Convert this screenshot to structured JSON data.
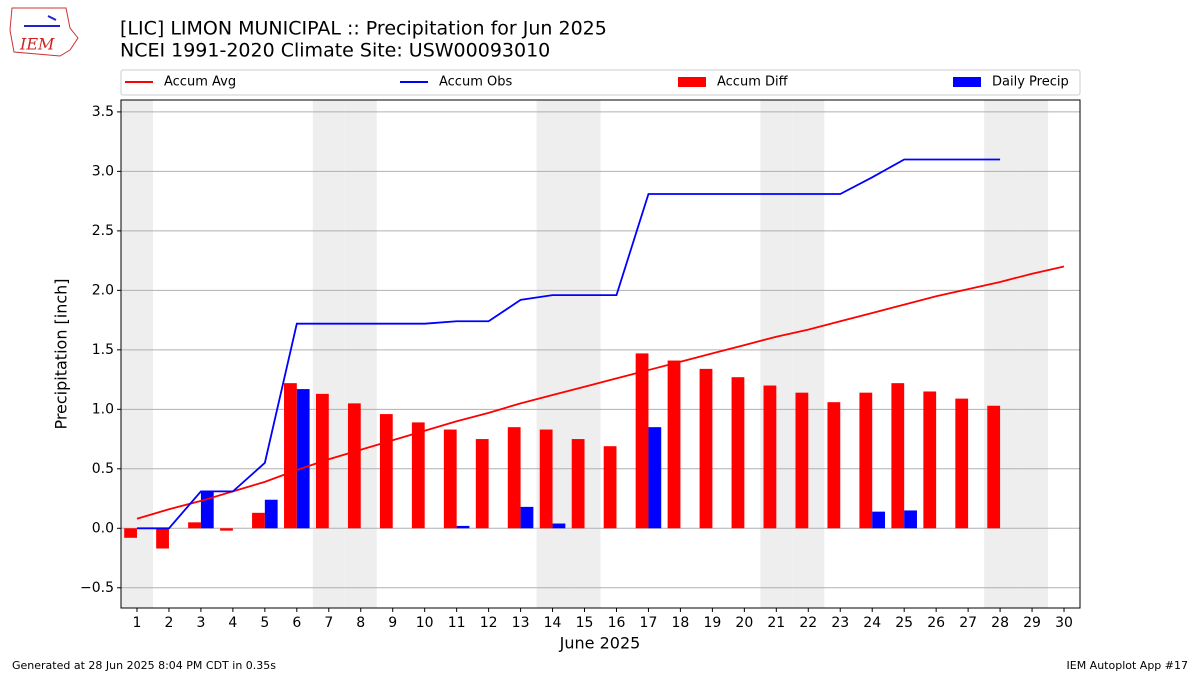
{
  "chart_data": {
    "type": "bar_line",
    "title": "[LIC] LIMON MUNICIPAL :: Precipitation for Jun 2025",
    "subtitle": "NCEI 1991-2020 Climate Site: USW00093010",
    "x_label": "June 2025",
    "y_label": "Precipitation [inch]",
    "footer_left": "Generated at 28 Jun 2025 8:04 PM CDT in 0.35s",
    "footer_right": "IEM Autoplot App #17",
    "logo": "IEM",
    "x": [
      1,
      2,
      3,
      4,
      5,
      6,
      7,
      8,
      9,
      10,
      11,
      12,
      13,
      14,
      15,
      16,
      17,
      18,
      19,
      20,
      21,
      22,
      23,
      24,
      25,
      26,
      27,
      28,
      29,
      30
    ],
    "xlim": [
      0.5,
      30.5
    ],
    "xticks": [
      1,
      2,
      3,
      4,
      5,
      6,
      7,
      8,
      9,
      10,
      11,
      12,
      13,
      14,
      15,
      16,
      17,
      18,
      19,
      20,
      21,
      22,
      23,
      24,
      25,
      26,
      27,
      28,
      29,
      30
    ],
    "ylim": [
      -0.67,
      3.6
    ],
    "yticks": [
      {
        "value": -0.5,
        "label": "−0.5"
      },
      {
        "value": 0,
        "label": "0.0"
      },
      {
        "value": 0.5,
        "label": "0.5"
      },
      {
        "value": 1,
        "label": "1.0"
      },
      {
        "value": 1.5,
        "label": "1.5"
      },
      {
        "value": 2,
        "label": "2.0"
      },
      {
        "value": 2.5,
        "label": "2.5"
      },
      {
        "value": 3,
        "label": "3.0"
      },
      {
        "value": 3.5,
        "label": "3.5"
      }
    ],
    "grid": true,
    "series": [
      {
        "name": "Accum Avg",
        "kind": "line",
        "color": "#ff0000",
        "values": [
          0.08,
          0.16,
          0.23,
          0.31,
          0.39,
          0.49,
          0.58,
          0.66,
          0.74,
          0.82,
          0.9,
          0.97,
          1.05,
          1.12,
          1.19,
          1.26,
          1.33,
          1.4,
          1.47,
          1.54,
          1.61,
          1.67,
          1.74,
          1.81,
          1.88,
          1.95,
          2.01,
          2.07,
          2.14,
          2.2
        ]
      },
      {
        "name": "Accum Obs",
        "kind": "line",
        "color": "#0000ff",
        "values": [
          0,
          0,
          0.31,
          0.31,
          0.55,
          1.72,
          1.72,
          1.72,
          1.72,
          1.72,
          1.74,
          1.74,
          1.92,
          1.96,
          1.96,
          1.96,
          2.81,
          2.81,
          2.81,
          2.81,
          2.81,
          2.81,
          2.81,
          2.95,
          3.1,
          3.1,
          3.1,
          3.1,
          null,
          null
        ]
      },
      {
        "name": "Accum Diff",
        "kind": "bar",
        "color": "#ff0000",
        "values": [
          -0.08,
          -0.17,
          0.05,
          -0.02,
          0.13,
          1.22,
          1.13,
          1.05,
          0.96,
          0.89,
          0.83,
          0.75,
          0.85,
          0.83,
          0.75,
          0.69,
          1.47,
          1.41,
          1.34,
          1.27,
          1.2,
          1.14,
          1.06,
          1.14,
          1.22,
          1.15,
          1.09,
          1.03,
          null,
          null
        ]
      },
      {
        "name": "Daily Precip",
        "kind": "bar",
        "color": "#0000ff",
        "values": [
          0,
          0,
          0.31,
          0,
          0.24,
          1.17,
          0,
          0,
          0,
          0,
          0.02,
          0,
          0.18,
          0.04,
          0,
          0,
          0.85,
          0,
          0,
          0,
          0,
          0,
          0,
          0.14,
          0.15,
          0,
          0,
          0,
          null,
          null
        ]
      }
    ]
  }
}
